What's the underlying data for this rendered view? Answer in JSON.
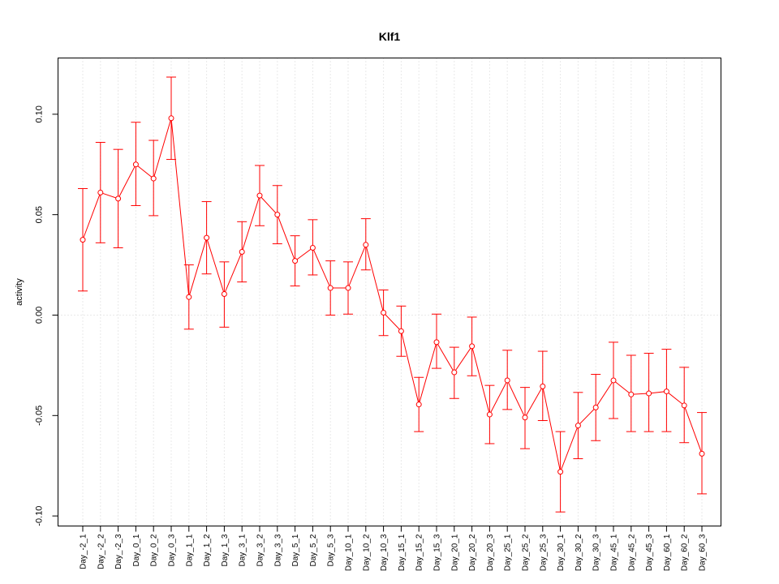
{
  "chart_data": {
    "type": "line",
    "title": "Klf1",
    "xlabel": "",
    "ylabel": "activity",
    "ylim": [
      -0.105,
      0.128
    ],
    "yticks": [
      -0.1,
      -0.05,
      0.0,
      0.05,
      0.1
    ],
    "ytick_labels": [
      "-0.10",
      "-0.05",
      "0.00",
      "0.05",
      "0.10"
    ],
    "grid": true,
    "error_bars": true,
    "color": "#ff0000",
    "grid_color": "#d3d3d3",
    "categories": [
      "Day_-2_1",
      "Day_-2_2",
      "Day_-2_3",
      "Day_0_1",
      "Day_0_2",
      "Day_0_3",
      "Day_1_1",
      "Day_1_2",
      "Day_1_3",
      "Day_3_1",
      "Day_3_2",
      "Day_3_3",
      "Day_5_1",
      "Day_5_2",
      "Day_5_3",
      "Day_10_1",
      "Day_10_2",
      "Day_10_3",
      "Day_15_1",
      "Day_15_2",
      "Day_15_3",
      "Day_20_1",
      "Day_20_2",
      "Day_20_3",
      "Day_25_1",
      "Day_25_2",
      "Day_25_3",
      "Day_30_1",
      "Day_30_2",
      "Day_30_3",
      "Day_45_1",
      "Day_45_2",
      "Day_45_3",
      "Day_60_1",
      "Day_60_2",
      "Day_60_3"
    ],
    "values": [
      0.0375,
      0.061,
      0.058,
      0.075,
      0.068,
      0.098,
      0.009,
      0.0385,
      0.0105,
      0.0315,
      0.0595,
      0.05,
      0.027,
      0.0335,
      0.0135,
      0.0135,
      0.035,
      0.0012,
      -0.008,
      -0.0445,
      -0.0135,
      -0.0285,
      -0.0155,
      -0.0495,
      -0.0325,
      -0.051,
      -0.0355,
      -0.078,
      -0.055,
      -0.046,
      -0.0325,
      -0.0395,
      -0.039,
      -0.038,
      -0.045,
      -0.069
    ],
    "lower": [
      0.012,
      0.036,
      0.0335,
      0.0545,
      0.0495,
      0.0775,
      -0.007,
      0.0205,
      -0.006,
      0.0165,
      0.0445,
      0.0355,
      0.0145,
      0.02,
      0.0,
      0.0005,
      0.0225,
      -0.0102,
      -0.0205,
      -0.058,
      -0.0265,
      -0.0415,
      -0.0302,
      -0.064,
      -0.047,
      -0.0665,
      -0.0525,
      -0.098,
      -0.0715,
      -0.0625,
      -0.0515,
      -0.058,
      -0.058,
      -0.058,
      -0.0635,
      -0.089
    ],
    "upper": [
      0.063,
      0.086,
      0.0825,
      0.096,
      0.087,
      0.1185,
      0.025,
      0.0565,
      0.0265,
      0.0465,
      0.0745,
      0.0645,
      0.0395,
      0.0475,
      0.027,
      0.0265,
      0.048,
      0.0125,
      0.0045,
      -0.031,
      0.0005,
      -0.016,
      -0.001,
      -0.035,
      -0.0175,
      -0.036,
      -0.018,
      -0.058,
      -0.0385,
      -0.0295,
      -0.0135,
      -0.02,
      -0.019,
      -0.017,
      -0.026,
      -0.0485
    ]
  }
}
